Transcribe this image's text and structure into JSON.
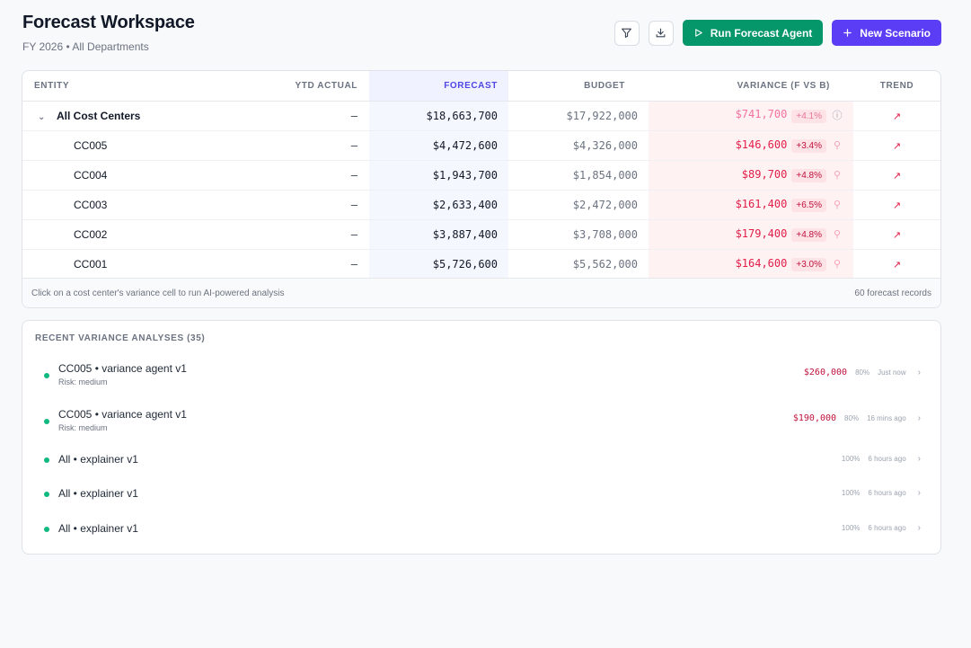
{
  "header": {
    "title": "Forecast Workspace",
    "subtitle": "FY 2026 • All Departments",
    "run_agent_label": "Run Forecast Agent",
    "new_scenario_label": "New Scenario"
  },
  "table": {
    "columns": {
      "entity": "ENTITY",
      "ytd": "YTD ACTUAL",
      "forecast": "FORECAST",
      "budget": "BUDGET",
      "variance": "VARIANCE (F VS B)",
      "trend": "TREND"
    },
    "rows": [
      {
        "entity": "All Cost Centers",
        "ytd": "—",
        "forecast": "$18,663,700",
        "budget": "$17,922,000",
        "variance": "$741,700",
        "pct": "+4.1%"
      },
      {
        "entity": "CC005",
        "ytd": "—",
        "forecast": "$4,472,600",
        "budget": "$4,326,000",
        "variance": "$146,600",
        "pct": "+3.4%"
      },
      {
        "entity": "CC004",
        "ytd": "—",
        "forecast": "$1,943,700",
        "budget": "$1,854,000",
        "variance": "$89,700",
        "pct": "+4.8%"
      },
      {
        "entity": "CC003",
        "ytd": "—",
        "forecast": "$2,633,400",
        "budget": "$2,472,000",
        "variance": "$161,400",
        "pct": "+6.5%"
      },
      {
        "entity": "CC002",
        "ytd": "—",
        "forecast": "$3,887,400",
        "budget": "$3,708,000",
        "variance": "$179,400",
        "pct": "+4.8%"
      },
      {
        "entity": "CC001",
        "ytd": "—",
        "forecast": "$5,726,600",
        "budget": "$5,562,000",
        "variance": "$164,600",
        "pct": "+3.0%"
      }
    ],
    "footer_hint": "Click on a cost center's variance cell to run AI-powered analysis",
    "footer_count": "60 forecast records"
  },
  "analyses": {
    "title": "RECENT VARIANCE ANALYSES (35)",
    "items": [
      {
        "title": "CC005 • variance agent v1",
        "risk": "Risk: medium",
        "amount": "$260,000",
        "confidence": "80%",
        "time": "Just now"
      },
      {
        "title": "CC005 • variance agent v1",
        "risk": "Risk: medium",
        "amount": "$190,000",
        "confidence": "80%",
        "time": "16 mins ago"
      },
      {
        "title": "All • explainer v1",
        "risk": "",
        "amount": "",
        "confidence": "100%",
        "time": "6 hours ago"
      },
      {
        "title": "All • explainer v1",
        "risk": "",
        "amount": "",
        "confidence": "100%",
        "time": "6 hours ago"
      },
      {
        "title": "All • explainer v1",
        "risk": "",
        "amount": "",
        "confidence": "100%",
        "time": "6 hours ago"
      }
    ]
  },
  "icons": {
    "filter": "filter-icon",
    "download": "download-icon",
    "play": "play-icon",
    "plus": "plus-icon",
    "trend": "trend-up-icon",
    "chevron_down": "chevron-down-icon",
    "chevron_right": "chevron-right-icon",
    "info": "info-icon",
    "search": "search-icon"
  },
  "colors": {
    "primary_green": "#059669",
    "primary_purple": "#5b3df5",
    "variance_red": "#e11d48",
    "status_dot": "#10b981"
  }
}
